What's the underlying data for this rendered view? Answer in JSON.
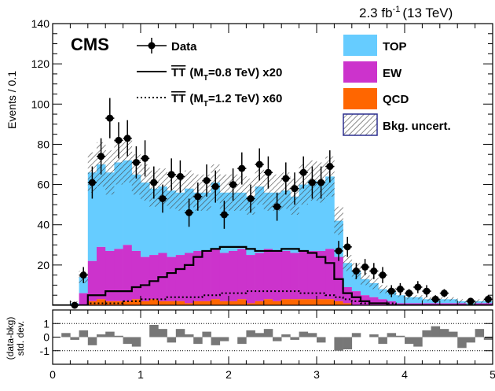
{
  "chart_data": {
    "type": "bar",
    "lumi": "2.3 fb",
    "lumi_exp": "-1",
    "energy": "(13 TeV)",
    "cms": "CMS",
    "ylabel": "Events / 0.1",
    "xlabel": "",
    "ratio_ylabel_1": "(data-bkg)",
    "ratio_ylabel_2": "std. dev.",
    "xlim": [
      0,
      5
    ],
    "ylim": [
      0,
      140
    ],
    "ratio_ylim": [
      -2,
      2
    ],
    "x_ticks": [
      "0",
      "1",
      "2",
      "3",
      "4",
      "5"
    ],
    "y_ticks": [
      "20",
      "40",
      "60",
      "80",
      "100",
      "120",
      "140"
    ],
    "ratio_ticks": [
      "1",
      "0",
      "-1"
    ],
    "colors": {
      "top": "#66ccff",
      "ew": "#cc33cc",
      "qcd": "#ff6600",
      "uncert": "#333333"
    },
    "legend": {
      "data": "Data",
      "sig1_prefix": "TT",
      "sig1_paren": "(M",
      "sig1_sub": "T",
      "sig1_rest": "=0.8 TeV) x20",
      "sig2_prefix": "TT",
      "sig2_paren": "(M",
      "sig2_sub": "T",
      "sig2_rest": "=1.2 TeV) x60",
      "top": "TOP",
      "ew": "EW",
      "qcd": "QCD",
      "uncert": "Bkg. uncert."
    },
    "bin_edges_start": 0,
    "bin_width": 0.1,
    "series": [
      {
        "name": "QCD",
        "values": [
          0,
          0,
          0,
          0,
          2,
          3,
          2,
          2,
          2,
          3,
          2,
          3,
          2,
          2,
          2,
          1,
          2,
          2,
          3,
          2,
          2,
          3,
          1,
          2,
          3,
          2,
          3,
          3,
          3,
          3,
          3,
          3,
          2,
          1,
          0,
          0,
          0,
          0,
          0,
          0,
          0,
          0,
          0,
          0,
          0,
          0,
          0,
          0,
          0,
          0
        ]
      },
      {
        "name": "EW",
        "values": [
          0,
          0,
          0,
          6,
          20,
          26,
          25,
          26,
          28,
          24,
          22,
          22,
          24,
          22,
          23,
          25,
          25,
          25,
          25,
          24,
          25,
          25,
          24,
          24,
          25,
          25,
          24,
          23,
          24,
          24,
          24,
          25,
          22,
          8,
          7,
          5,
          4,
          3,
          2,
          1,
          1,
          1,
          1,
          1,
          1,
          1,
          1,
          0,
          1,
          1
        ]
      },
      {
        "name": "TOP",
        "values": [
          0,
          0,
          1,
          8,
          44,
          41,
          39,
          43,
          42,
          38,
          37,
          33,
          33,
          33,
          31,
          32,
          29,
          29,
          33,
          30,
          29,
          28,
          29,
          33,
          28,
          29,
          30,
          28,
          33,
          35,
          34,
          36,
          18,
          12,
          10,
          8,
          7,
          5,
          5,
          4,
          3,
          3,
          2,
          2,
          2,
          2,
          1,
          1,
          1,
          1
        ]
      },
      {
        "name": "Bkg. uncert.",
        "values": [
          0,
          0,
          1,
          3,
          10,
          11,
          11,
          11,
          11,
          10,
          9,
          9,
          9,
          9,
          9,
          9,
          9,
          9,
          9,
          9,
          9,
          9,
          9,
          9,
          9,
          9,
          9,
          9,
          10,
          10,
          10,
          10,
          7,
          4,
          4,
          3,
          3,
          2,
          2,
          1,
          1,
          1,
          1,
          1,
          1,
          1,
          1,
          1,
          1,
          1
        ]
      },
      {
        "name": "Data",
        "x": [
          0.25,
          0.35,
          0.45,
          0.55,
          0.65,
          0.75,
          0.85,
          0.95,
          1.05,
          1.15,
          1.25,
          1.35,
          1.45,
          1.55,
          1.65,
          1.75,
          1.85,
          1.95,
          2.05,
          2.15,
          2.25,
          2.35,
          2.45,
          2.55,
          2.65,
          2.75,
          2.85,
          2.95,
          3.05,
          3.15,
          3.25,
          3.35,
          3.45,
          3.55,
          3.65,
          3.75,
          3.85,
          3.95,
          4.05,
          4.15,
          4.25,
          4.35,
          4.45,
          4.75,
          4.95
        ],
        "values": [
          0,
          15,
          61,
          74,
          93,
          82,
          83,
          71,
          73,
          61,
          53,
          65,
          64,
          46,
          54,
          62,
          59,
          45,
          60,
          68,
          53,
          70,
          66,
          49,
          63,
          58,
          66,
          61,
          61,
          69,
          27,
          29,
          17,
          19,
          17,
          15,
          7,
          8,
          6,
          9,
          7,
          3,
          6,
          2,
          3
        ],
        "errors": [
          1,
          4,
          8,
          9,
          10,
          9,
          9,
          8,
          9,
          8,
          7,
          8,
          8,
          7,
          7,
          8,
          8,
          7,
          8,
          8,
          7,
          8,
          8,
          7,
          8,
          8,
          8,
          8,
          8,
          8,
          5,
          5,
          4,
          4,
          4,
          4,
          3,
          3,
          2,
          3,
          3,
          2,
          2,
          1,
          2
        ]
      },
      {
        "name": "TT (MT=0.8 TeV) x20",
        "values": [
          0,
          0,
          0,
          0,
          5,
          5,
          7,
          7,
          7,
          9,
          10,
          12,
          14,
          16,
          18,
          20,
          24,
          27,
          28,
          29,
          29,
          29,
          28,
          27,
          27,
          27,
          28,
          28,
          27,
          26,
          24,
          21,
          13,
          6,
          4,
          2,
          1,
          1,
          0,
          0,
          0,
          0,
          0,
          0,
          0,
          0,
          0,
          0,
          0,
          0
        ]
      },
      {
        "name": "TT (MT=1.2 TeV) x60",
        "values": [
          0,
          0,
          0,
          0,
          1,
          1,
          1,
          1,
          2,
          2,
          3,
          3,
          3,
          4,
          4,
          4,
          4,
          5,
          5,
          6,
          6,
          6,
          7,
          7,
          7,
          7,
          7,
          7,
          6,
          6,
          6,
          5,
          4,
          3,
          2,
          1,
          1,
          1,
          1,
          0,
          0,
          0,
          0,
          0,
          0,
          0,
          0,
          0,
          0,
          0
        ]
      },
      {
        "name": "Pull",
        "values": [
          0,
          0.3,
          -0.2,
          0.5,
          -0.6,
          0.2,
          0.4,
          0.1,
          -0.5,
          -0.7,
          0,
          0.9,
          0.6,
          -0.4,
          0.6,
          0.2,
          -0.5,
          0.4,
          -0.6,
          -0.3,
          0,
          -0.5,
          0.5,
          0.3,
          0.6,
          -0.3,
          0.2,
          -0.2,
          0.4,
          0.3,
          -0.4,
          0,
          -1.0,
          -0.9,
          0.3,
          0,
          0.2,
          -0.5,
          0.3,
          0.1,
          -0.5,
          -0.7,
          0.5,
          0.8,
          0.6,
          0.4,
          -0.8,
          -0.4,
          0.6,
          -0.2
        ]
      }
    ]
  }
}
